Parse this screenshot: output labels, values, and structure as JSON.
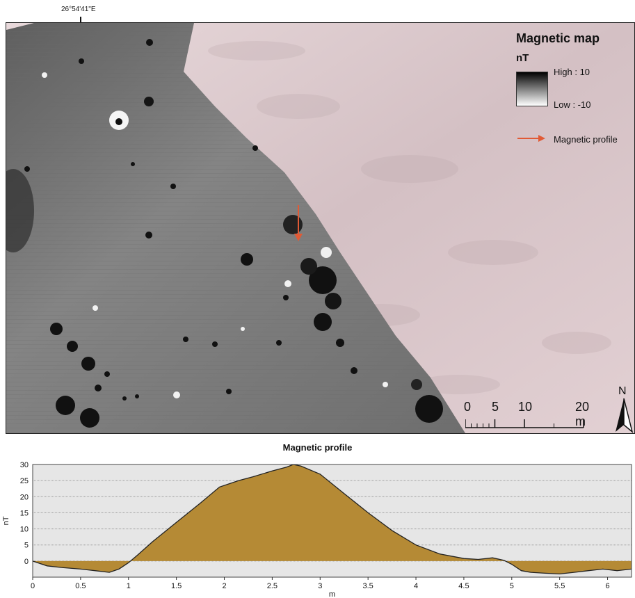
{
  "map": {
    "coordinate_label": "26°54'41\"E",
    "legend": {
      "title": "Magnetic map",
      "unit": "nT",
      "high_label": "High : 10",
      "low_label": "Low : -10",
      "profile_label": "Magnetic profile"
    },
    "scale": {
      "labels": [
        "0",
        "5",
        "10",
        "20 m"
      ]
    },
    "north_label": "N",
    "colors": {
      "terrain": "#d9c6c9",
      "survey_gray": "#7a7a7a",
      "profile_arrow": "#e15a35"
    }
  },
  "profile": {
    "title": "Magnetic profile"
  },
  "chart_data": {
    "type": "area",
    "title": "Magnetic profile",
    "xlabel": "m",
    "ylabel": "nT",
    "x_ticks": [
      "0",
      "0.5",
      "1",
      "1.5",
      "2",
      "2.5",
      "3",
      "3.5",
      "4",
      "4.5",
      "5",
      "5.5",
      "6"
    ],
    "y_ticks": [
      "0",
      "5",
      "10",
      "15",
      "20",
      "25",
      "30"
    ],
    "xlim": [
      0,
      6.25
    ],
    "ylim": [
      -5,
      30
    ],
    "grid": true,
    "fill_color": "#b58a35",
    "series": [
      {
        "name": "Magnetic profile",
        "x": [
          0,
          0.15,
          0.3,
          0.5,
          0.65,
          0.8,
          0.9,
          1.0,
          1.1,
          1.25,
          1.5,
          1.75,
          1.95,
          2.15,
          2.3,
          2.5,
          2.65,
          2.72,
          2.8,
          3.0,
          3.25,
          3.5,
          3.75,
          4.0,
          4.25,
          4.5,
          4.65,
          4.8,
          4.92,
          5.0,
          5.1,
          5.2,
          5.35,
          5.5,
          5.65,
          5.8,
          5.95,
          6.1,
          6.25
        ],
        "y": [
          0,
          -1.5,
          -2.0,
          -2.5,
          -3.0,
          -3.5,
          -2.5,
          -0.5,
          2.0,
          6.0,
          12.0,
          18.0,
          23.0,
          25.0,
          26.2,
          28.0,
          29.2,
          30.0,
          29.5,
          27.0,
          21.0,
          15.0,
          9.5,
          5.0,
          2.2,
          0.8,
          0.5,
          1.0,
          0.2,
          -1.0,
          -3.0,
          -3.5,
          -3.8,
          -4.0,
          -3.5,
          -3.0,
          -2.5,
          -3.0,
          -2.5
        ]
      }
    ]
  }
}
